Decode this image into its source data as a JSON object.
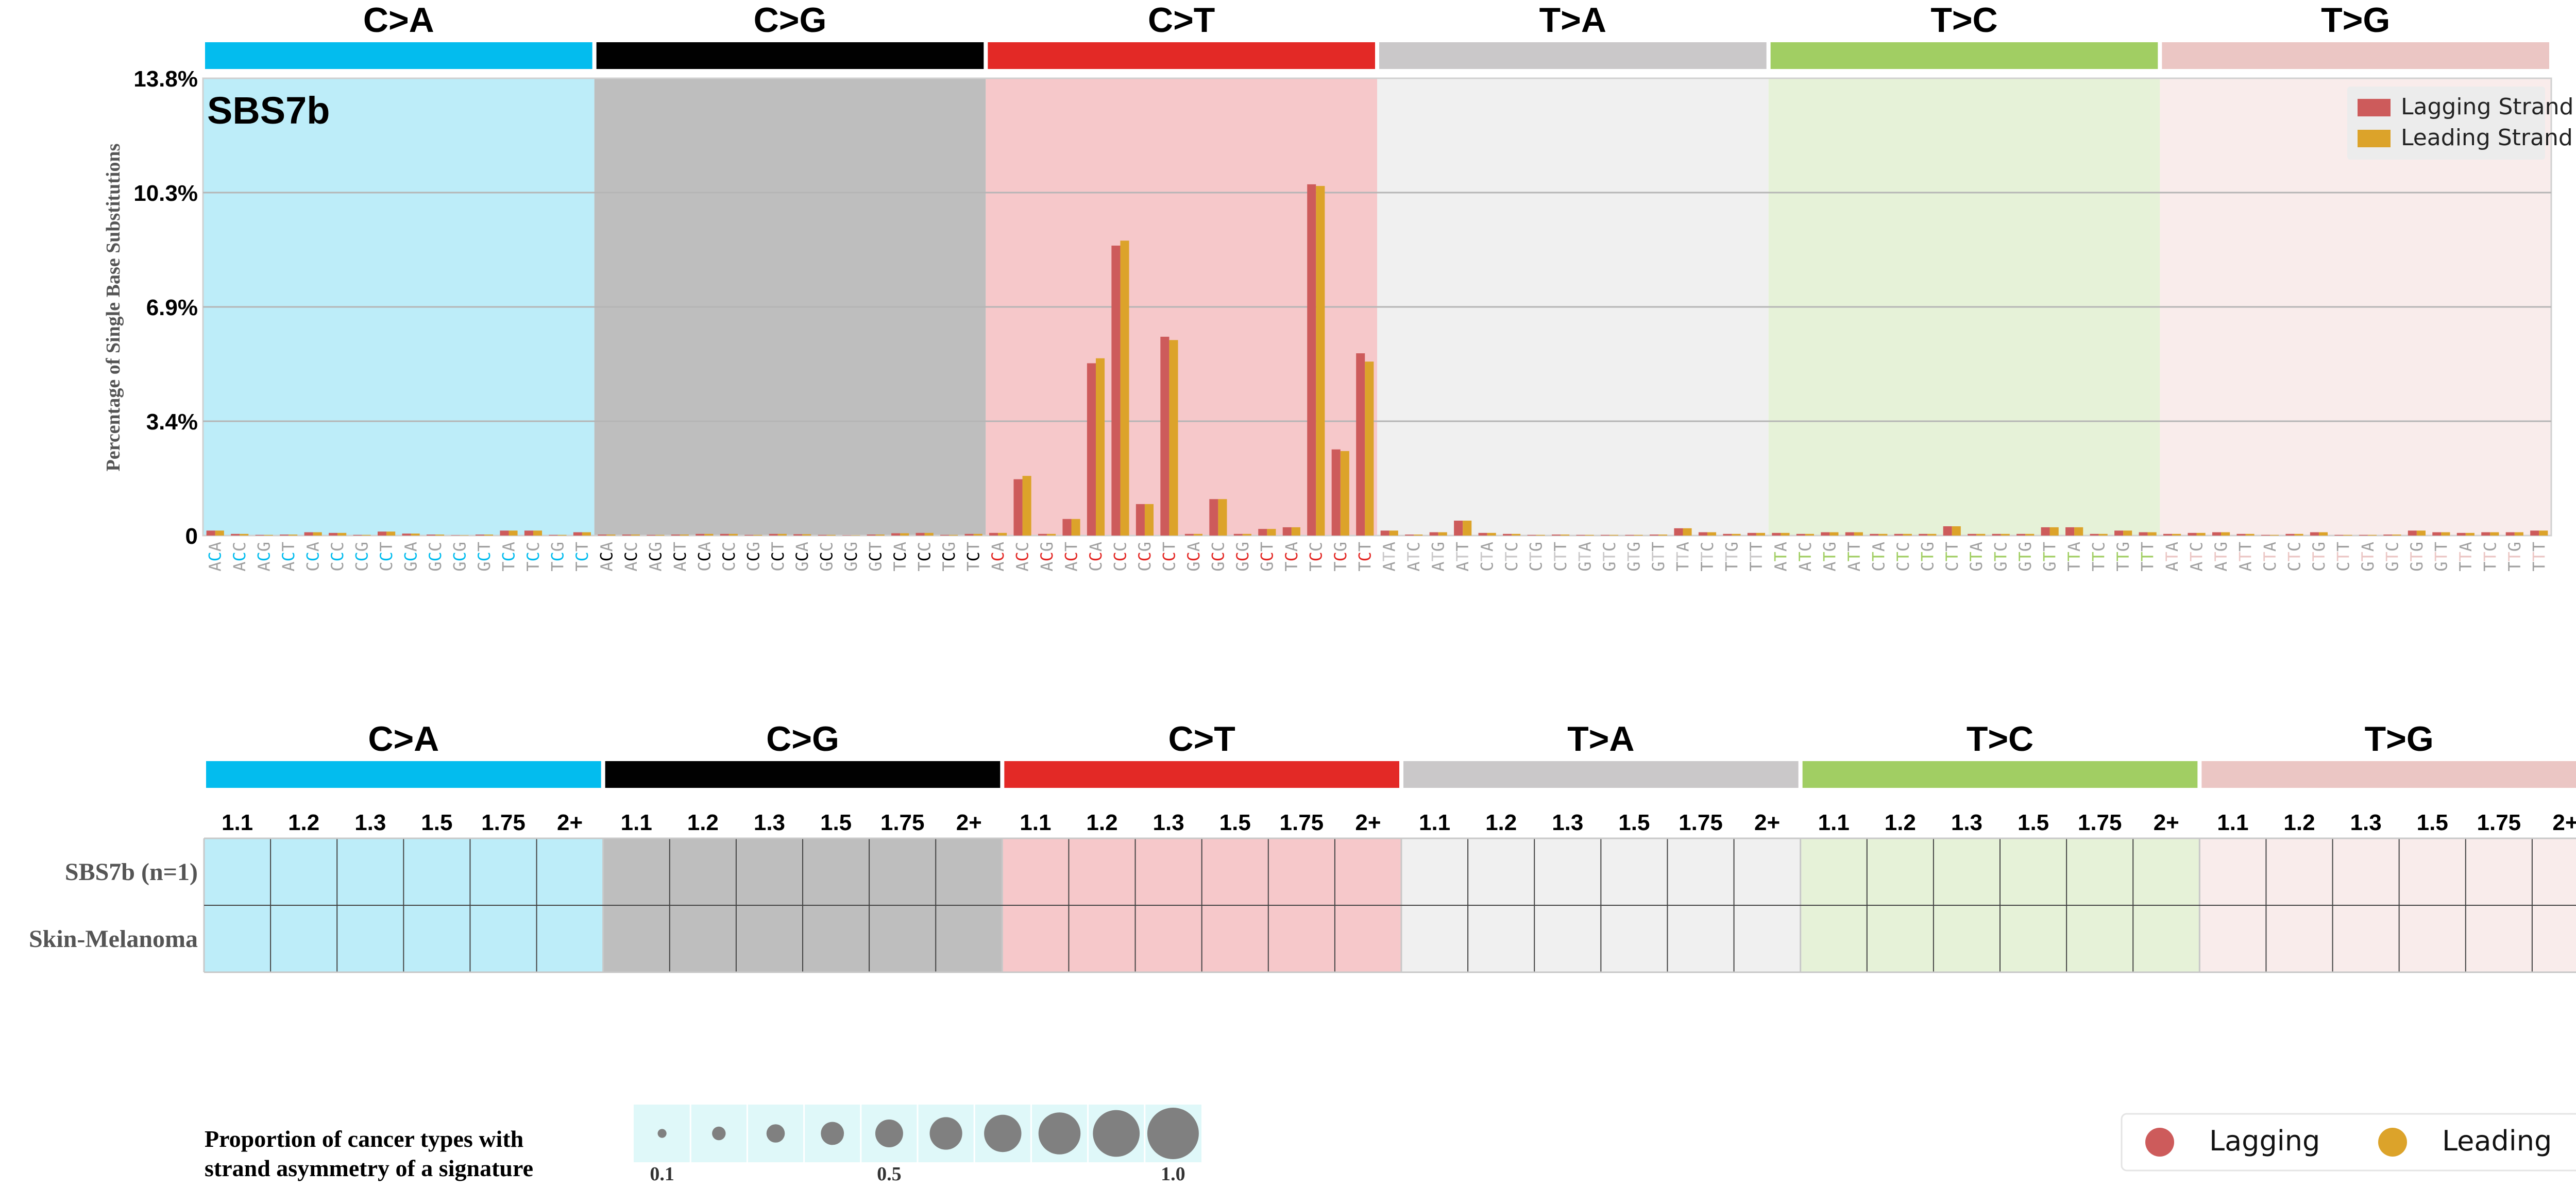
{
  "chart_data": [
    {
      "type": "bar",
      "title": "SBS7b",
      "ylabel": "Percentage of Single Base Substitutions",
      "yticks": [
        "0",
        "3.4%",
        "6.9%",
        "10.3%",
        "13.8%"
      ],
      "ylim": [
        0,
        13.8
      ],
      "grid": true,
      "legend_position": "top-right",
      "mutation_types": [
        {
          "label": "C>A",
          "color": "#03bcee",
          "bg": "#bdedf9"
        },
        {
          "label": "C>G",
          "color": "#010101",
          "bg": "#bebebe"
        },
        {
          "label": "C>T",
          "color": "#e32926",
          "bg": "#f6c8ca"
        },
        {
          "label": "T>A",
          "color": "#cac8c9",
          "bg": "#f0f0f0"
        },
        {
          "label": "T>C",
          "color": "#a1ce63",
          "bg": "#e6f2d8"
        },
        {
          "label": "T>G",
          "color": "#ebc6c4",
          "bg": "#f9eceb"
        }
      ],
      "categories": [
        "ACA",
        "ACC",
        "ACG",
        "ACT",
        "CCA",
        "CCC",
        "CCG",
        "CCT",
        "GCA",
        "GCC",
        "GCG",
        "GCT",
        "TCA",
        "TCC",
        "TCG",
        "TCT",
        "ACA",
        "ACC",
        "ACG",
        "ACT",
        "CCA",
        "CCC",
        "CCG",
        "CCT",
        "GCA",
        "GCC",
        "GCG",
        "GCT",
        "TCA",
        "TCC",
        "TCG",
        "TCT",
        "ACA",
        "ACC",
        "ACG",
        "ACT",
        "CCA",
        "CCC",
        "CCG",
        "CCT",
        "GCA",
        "GCC",
        "GCG",
        "GCT",
        "TCA",
        "TCC",
        "TCG",
        "TCT",
        "ATA",
        "ATC",
        "ATG",
        "ATT",
        "CTA",
        "CTC",
        "CTG",
        "CTT",
        "GTA",
        "GTC",
        "GTG",
        "GTT",
        "TTA",
        "TTC",
        "TTG",
        "TTT",
        "ATA",
        "ATC",
        "ATG",
        "ATT",
        "CTA",
        "CTC",
        "CTG",
        "CTT",
        "GTA",
        "GTC",
        "GTG",
        "GTT",
        "TTA",
        "TTC",
        "TTG",
        "TTT",
        "ATA",
        "ATC",
        "ATG",
        "ATT",
        "CTA",
        "CTC",
        "CTG",
        "CTT",
        "GTA",
        "GTC",
        "GTG",
        "GTT",
        "TTA",
        "TTC",
        "TTG",
        "TTT"
      ],
      "series": [
        {
          "name": "Lagging Strand",
          "color": "#cd5b5b",
          "values": [
            0.15,
            0.05,
            0.02,
            0.03,
            0.1,
            0.08,
            0.02,
            0.12,
            0.06,
            0.03,
            0.01,
            0.03,
            0.15,
            0.15,
            0.02,
            0.1,
            0.03,
            0.03,
            0.02,
            0.03,
            0.05,
            0.05,
            0.02,
            0.05,
            0.04,
            0.02,
            0.01,
            0.03,
            0.07,
            0.08,
            0.02,
            0.05,
            0.08,
            1.7,
            0.05,
            0.5,
            5.2,
            8.75,
            0.95,
            6.0,
            0.05,
            1.1,
            0.05,
            0.2,
            0.25,
            10.6,
            2.6,
            5.5,
            0.15,
            0.03,
            0.1,
            0.45,
            0.08,
            0.05,
            0.02,
            0.03,
            0.02,
            0.02,
            0.02,
            0.03,
            0.22,
            0.1,
            0.05,
            0.08,
            0.08,
            0.05,
            0.1,
            0.1,
            0.05,
            0.05,
            0.05,
            0.28,
            0.05,
            0.05,
            0.05,
            0.25,
            0.25,
            0.05,
            0.15,
            0.1,
            0.05,
            0.08,
            0.1,
            0.05,
            0.02,
            0.05,
            0.1,
            0.02,
            0.02,
            0.03,
            0.15,
            0.1,
            0.08,
            0.1,
            0.1,
            0.15
          ]
        },
        {
          "name": "Leading Strand",
          "color": "#dca32a",
          "values": [
            0.15,
            0.05,
            0.02,
            0.03,
            0.1,
            0.08,
            0.02,
            0.12,
            0.06,
            0.03,
            0.01,
            0.03,
            0.15,
            0.15,
            0.02,
            0.1,
            0.03,
            0.03,
            0.02,
            0.03,
            0.05,
            0.05,
            0.02,
            0.05,
            0.04,
            0.02,
            0.01,
            0.03,
            0.07,
            0.08,
            0.02,
            0.05,
            0.08,
            1.8,
            0.05,
            0.5,
            5.35,
            8.9,
            0.95,
            5.9,
            0.05,
            1.1,
            0.05,
            0.2,
            0.25,
            10.55,
            2.55,
            5.25,
            0.15,
            0.03,
            0.1,
            0.45,
            0.08,
            0.05,
            0.02,
            0.03,
            0.02,
            0.02,
            0.02,
            0.03,
            0.22,
            0.1,
            0.05,
            0.08,
            0.08,
            0.05,
            0.1,
            0.1,
            0.05,
            0.05,
            0.05,
            0.28,
            0.05,
            0.05,
            0.05,
            0.25,
            0.25,
            0.05,
            0.15,
            0.1,
            0.05,
            0.08,
            0.1,
            0.05,
            0.02,
            0.05,
            0.1,
            0.02,
            0.02,
            0.03,
            0.15,
            0.1,
            0.08,
            0.1,
            0.1,
            0.15
          ]
        }
      ]
    },
    {
      "type": "heatmap",
      "mutation_labels": [
        "C>A",
        "C>G",
        "C>T",
        "T>A",
        "T>C",
        "T>G"
      ],
      "column_labels": [
        "1.1",
        "1.2",
        "1.3",
        "1.5",
        "1.75",
        "2+"
      ],
      "row_labels": [
        "SBS7b (n=1)",
        "Skin-Melanoma"
      ],
      "bubbles": []
    }
  ],
  "size_legend": {
    "title_line1": "Proportion of cancer types with",
    "title_line2": "strand asymmetry of a signature",
    "tick_labels": [
      "0.1",
      "0.5",
      "1.0"
    ],
    "proportions": [
      0.1,
      0.2,
      0.3,
      0.4,
      0.5,
      0.6,
      0.7,
      0.8,
      0.9,
      1.0
    ]
  },
  "strand_legend": [
    {
      "label": "Lagging",
      "color": "#cd5b5b"
    },
    {
      "label": "Leading",
      "color": "#dca32a"
    }
  ]
}
